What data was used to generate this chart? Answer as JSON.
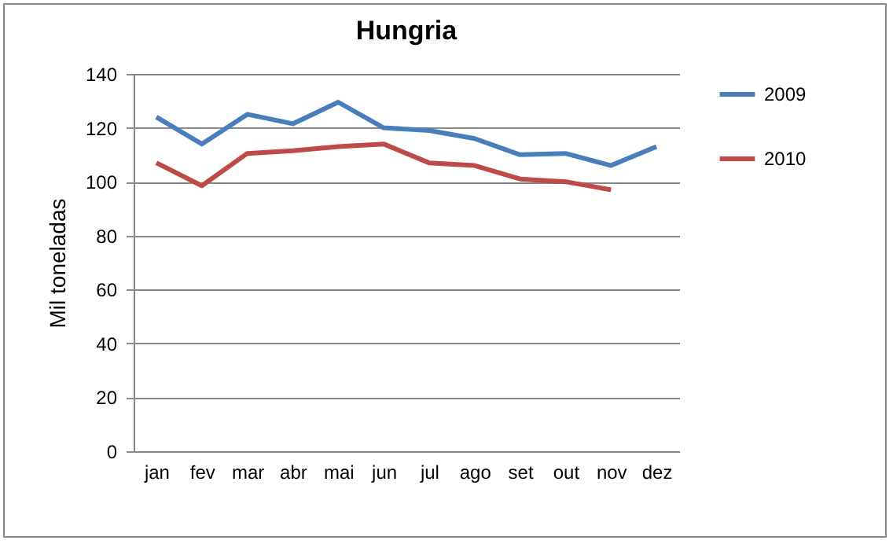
{
  "chart_data": {
    "type": "line",
    "title": "Hungria",
    "ylabel": "Mil toneladas",
    "categories": [
      "jan",
      "fev",
      "mar",
      "abr",
      "mai",
      "jun",
      "jul",
      "ago",
      "set",
      "out",
      "nov",
      "dez"
    ],
    "series": [
      {
        "name": "2009",
        "color": "#4a7ebb",
        "values": [
          124,
          114,
          125,
          121.5,
          129.5,
          120,
          119,
          116,
          110,
          110.5,
          106,
          113
        ]
      },
      {
        "name": "2010",
        "color": "#be4b48",
        "values": [
          107,
          98.5,
          110.5,
          111.5,
          113,
          114,
          107,
          106,
          101,
          100,
          97,
          null
        ]
      }
    ],
    "ylim": [
      0,
      140
    ],
    "yticks": [
      0,
      20,
      40,
      60,
      80,
      100,
      120,
      140
    ],
    "grid": "y",
    "legend": "right",
    "marker": "none",
    "line_style": "solid"
  }
}
